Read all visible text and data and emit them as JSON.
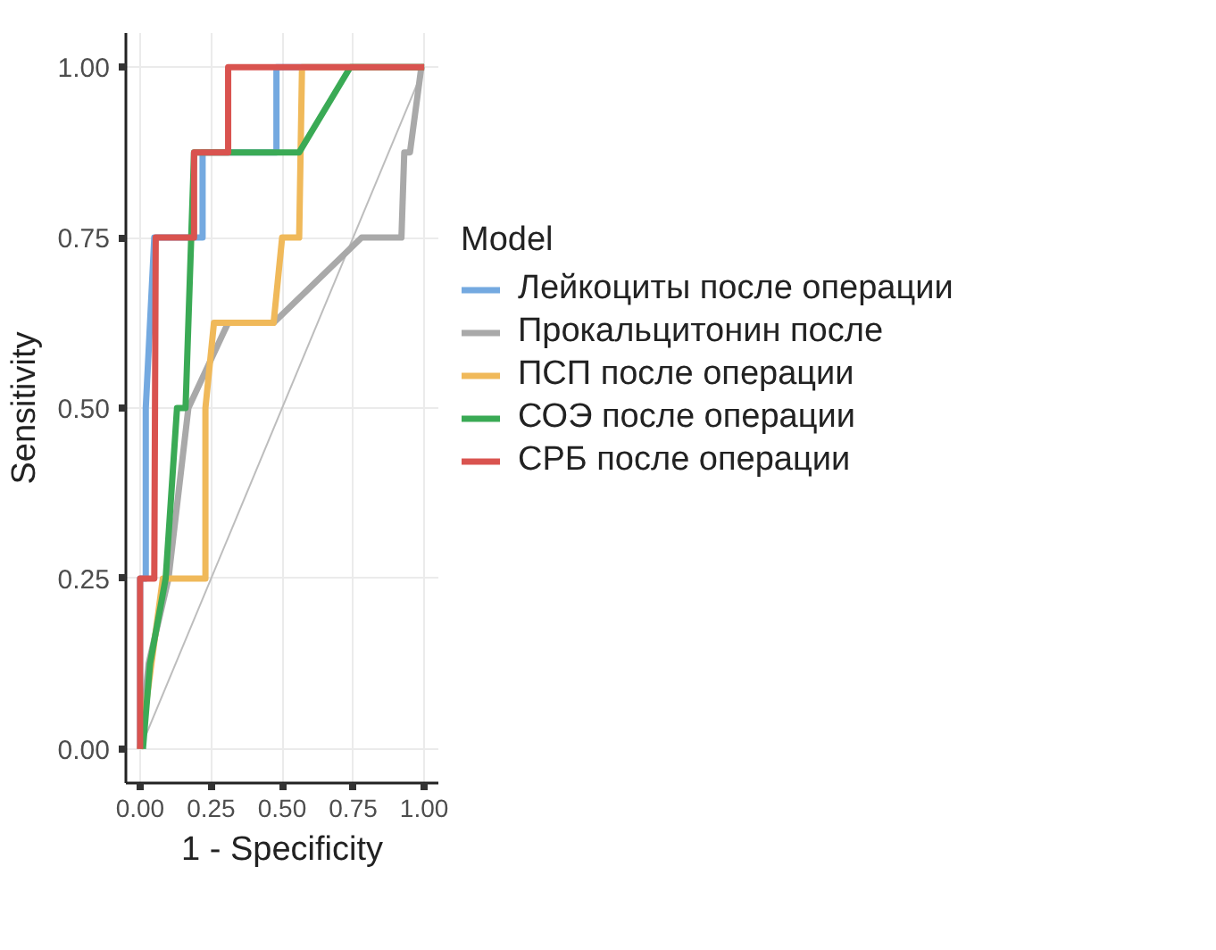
{
  "chart_data": {
    "type": "line",
    "xlabel": "1 - Specificity",
    "ylabel": "Sensitivity",
    "legend_title": "Model",
    "xlim": [
      -0.05,
      1.05
    ],
    "ylim": [
      -0.05,
      1.05
    ],
    "xticks": [
      {
        "value": 0,
        "label": "0.00"
      },
      {
        "value": 0.25,
        "label": "0.25"
      },
      {
        "value": 0.5,
        "label": "0.50"
      },
      {
        "value": 0.75,
        "label": "0.75"
      },
      {
        "value": 1,
        "label": "1.00"
      }
    ],
    "yticks": [
      {
        "value": 0,
        "label": "0.00"
      },
      {
        "value": 0.25,
        "label": "0.25"
      },
      {
        "value": 0.5,
        "label": "0.50"
      },
      {
        "value": 0.75,
        "label": "0.75"
      },
      {
        "value": 1,
        "label": "1.00"
      }
    ],
    "grid": true,
    "legend": "right",
    "marker": "none",
    "line_style": "solid",
    "series": [
      {
        "color": "#bdbdbd",
        "x": [
          0,
          1
        ],
        "values": [
          0,
          1
        ]
      },
      {
        "name": "Лейкоциты после операции",
        "color": "#74a9e0",
        "x": [
          0,
          0,
          0.02,
          0.02,
          0.05,
          0.22,
          0.22,
          0.48,
          0.48,
          1
        ],
        "values": [
          0,
          0.25,
          0.25,
          0.5,
          0.75,
          0.75,
          0.875,
          0.875,
          1,
          1
        ]
      },
      {
        "name": "Прокальцитонин после",
        "color": "#a9a9a9",
        "x": [
          0,
          0.03,
          0.1,
          0.17,
          0.31,
          0.47,
          0.78,
          0.92,
          0.93,
          0.95,
          0.99,
          1
        ],
        "values": [
          0,
          0.125,
          0.25,
          0.5,
          0.625,
          0.625,
          0.75,
          0.75,
          0.875,
          0.875,
          1,
          1
        ]
      },
      {
        "name": "ПСП после операции",
        "color": "#f0b95a",
        "x": [
          0,
          0.08,
          0.23,
          0.23,
          0.26,
          0.47,
          0.5,
          0.56,
          0.57,
          1
        ],
        "values": [
          0,
          0.25,
          0.25,
          0.5,
          0.625,
          0.625,
          0.75,
          0.75,
          1,
          1
        ]
      },
      {
        "name": "СОЭ после операции",
        "color": "#3aaa55",
        "x": [
          0.01,
          0.035,
          0.09,
          0.13,
          0.16,
          0.19,
          0.56,
          0.74,
          1
        ],
        "values": [
          0,
          0.125,
          0.25,
          0.5,
          0.5,
          0.875,
          0.875,
          1,
          1
        ]
      },
      {
        "name": "СРБ после операции",
        "color": "#d9534f",
        "x": [
          0,
          0,
          0.05,
          0.055,
          0.19,
          0.19,
          0.31,
          0.31,
          1
        ],
        "values": [
          0,
          0.25,
          0.25,
          0.75,
          0.75,
          0.875,
          0.875,
          1,
          1
        ]
      }
    ]
  }
}
